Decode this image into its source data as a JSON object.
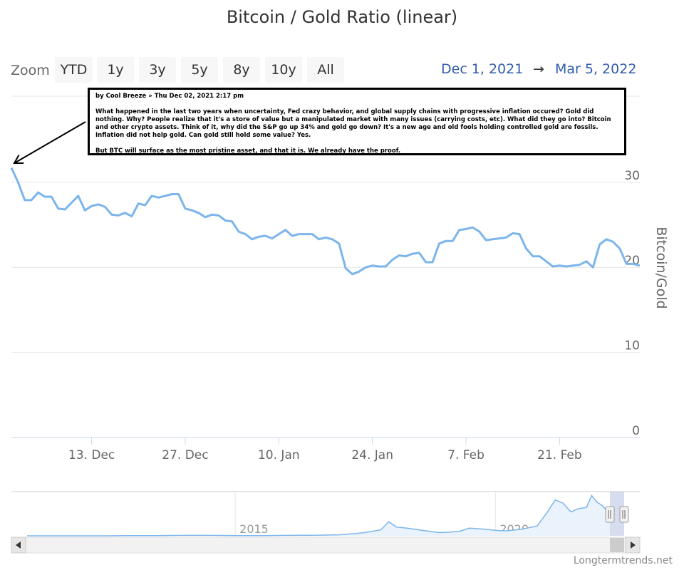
{
  "title": "Bitcoin / Gold Ratio (linear)",
  "zoom": {
    "label": "Zoom",
    "buttons": [
      "YTD",
      "1y",
      "3y",
      "5y",
      "8y",
      "10y",
      "All"
    ]
  },
  "range": {
    "from": "Dec 1, 2021",
    "arrow": "→",
    "to": "Mar 5, 2022"
  },
  "annotation": {
    "header": "by Cool Breeze » Thu Dec 02, 2021 2:17 pm",
    "body": "What happened in the last two years when uncertainty, Fed crazy behavior, and global supply chains with progressive inflation occured? Gold did nothing. Why? People realize that it's a store of value but a manipulated market with many issues (carrying costs, etc). What did they go into? Bitcoin and other crypto assets. Think of it, why did the S&P go up 34% and gold go down? It's a new age and old fools holding controlled gold are fossils. Inflation did not help gold. Can gold still hold some value? Yes.",
    "footer": "But BTC will surface as the most pristine asset, and that it is. We already have the proof."
  },
  "credit": "Longtermtrends.net",
  "colors": {
    "line": "#7cb5ec",
    "grid": "#e6e6e6",
    "range_text": "#335cad",
    "navigator_mask": "#c8d2e8"
  },
  "chart_data": {
    "type": "line",
    "title": "Bitcoin / Gold Ratio (linear)",
    "ylabel": "Bitcoin/Gold",
    "xlabel": "",
    "ylim": [
      0,
      35
    ],
    "y_ticks": [
      0,
      10,
      20,
      30
    ],
    "x_ticks": [
      "13. Dec",
      "27. Dec",
      "10. Jan",
      "24. Jan",
      "7. Feb",
      "21. Feb"
    ],
    "x_tick_days": [
      12,
      26,
      40,
      54,
      68,
      82
    ],
    "xlim_days": [
      0,
      94
    ],
    "grid": true,
    "legend": "none",
    "series": [
      {
        "x_days": [
          0,
          1,
          2,
          3,
          4,
          5,
          6,
          7,
          8,
          9,
          10,
          11,
          12,
          13,
          14,
          15,
          16,
          17,
          18,
          19,
          20,
          21,
          22,
          23,
          24,
          25,
          26,
          27,
          28,
          29,
          30,
          31,
          32,
          33,
          34,
          35,
          36,
          37,
          38,
          39,
          40,
          41,
          42,
          43,
          44,
          45,
          46,
          47,
          48,
          49,
          50,
          51,
          52,
          53,
          54,
          55,
          56,
          57,
          58,
          59,
          60,
          61,
          62,
          63,
          64,
          65,
          66,
          67,
          68,
          69,
          70,
          71,
          72,
          73,
          74,
          75,
          76,
          77,
          78,
          79,
          80,
          81,
          82,
          83,
          84,
          85,
          86,
          87,
          88,
          89,
          90,
          91,
          92,
          93,
          94
        ],
        "values": [
          31.7,
          30.0,
          27.9,
          27.9,
          28.8,
          28.3,
          28.3,
          26.9,
          26.8,
          27.6,
          28.4,
          26.7,
          27.2,
          27.4,
          27.1,
          26.2,
          26.1,
          26.4,
          26.0,
          27.5,
          27.3,
          28.4,
          28.2,
          28.4,
          28.6,
          28.6,
          26.9,
          26.7,
          26.4,
          25.9,
          26.2,
          26.1,
          25.5,
          25.4,
          24.2,
          23.9,
          23.3,
          23.6,
          23.7,
          23.4,
          23.9,
          24.4,
          23.7,
          23.9,
          23.9,
          23.9,
          23.3,
          23.5,
          23.3,
          22.8,
          19.9,
          19.2,
          19.5,
          20.0,
          20.2,
          20.1,
          20.1,
          20.9,
          21.4,
          21.3,
          21.6,
          21.7,
          20.6,
          20.6,
          22.8,
          23.1,
          23.1,
          24.4,
          24.5,
          24.7,
          24.2,
          23.2,
          23.3,
          23.4,
          23.5,
          24.0,
          23.9,
          22.2,
          21.3,
          21.3,
          20.7,
          20.1,
          20.2,
          20.1,
          20.2,
          20.3,
          20.7,
          20.0,
          22.7,
          23.3,
          23.0,
          22.2,
          20.4,
          20.4,
          20.2
        ]
      }
    ],
    "navigator": {
      "x_labels": [
        "2015",
        "2020"
      ],
      "x_years": [
        2011.0,
        2015.0,
        2020.0,
        2022.2
      ],
      "years": [
        2011.0,
        2011.5,
        2012.0,
        2012.5,
        2013.0,
        2013.5,
        2014.0,
        2014.5,
        2015.0,
        2015.5,
        2016.0,
        2016.5,
        2017.0,
        2017.3,
        2017.5,
        2017.8,
        2017.95,
        2018.1,
        2018.3,
        2018.6,
        2018.9,
        2019.0,
        2019.3,
        2019.5,
        2019.8,
        2020.0,
        2020.2,
        2020.5,
        2020.8,
        2021.0,
        2021.15,
        2021.3,
        2021.45,
        2021.6,
        2021.75,
        2021.85,
        2021.95,
        2022.05,
        2022.2
      ],
      "values": [
        0.0,
        0.0,
        0.0,
        0.0,
        0.1,
        0.1,
        0.4,
        0.4,
        0.2,
        0.2,
        0.4,
        0.5,
        0.9,
        2.0,
        3.0,
        5.5,
        13.0,
        8.0,
        7.0,
        5.0,
        3.0,
        3.0,
        4.0,
        7.0,
        6.0,
        5.0,
        4.5,
        6.0,
        9.0,
        22.0,
        33.0,
        30.0,
        22.0,
        25.0,
        26.0,
        37.0,
        31.0,
        28.0,
        20.2
      ]
    }
  }
}
